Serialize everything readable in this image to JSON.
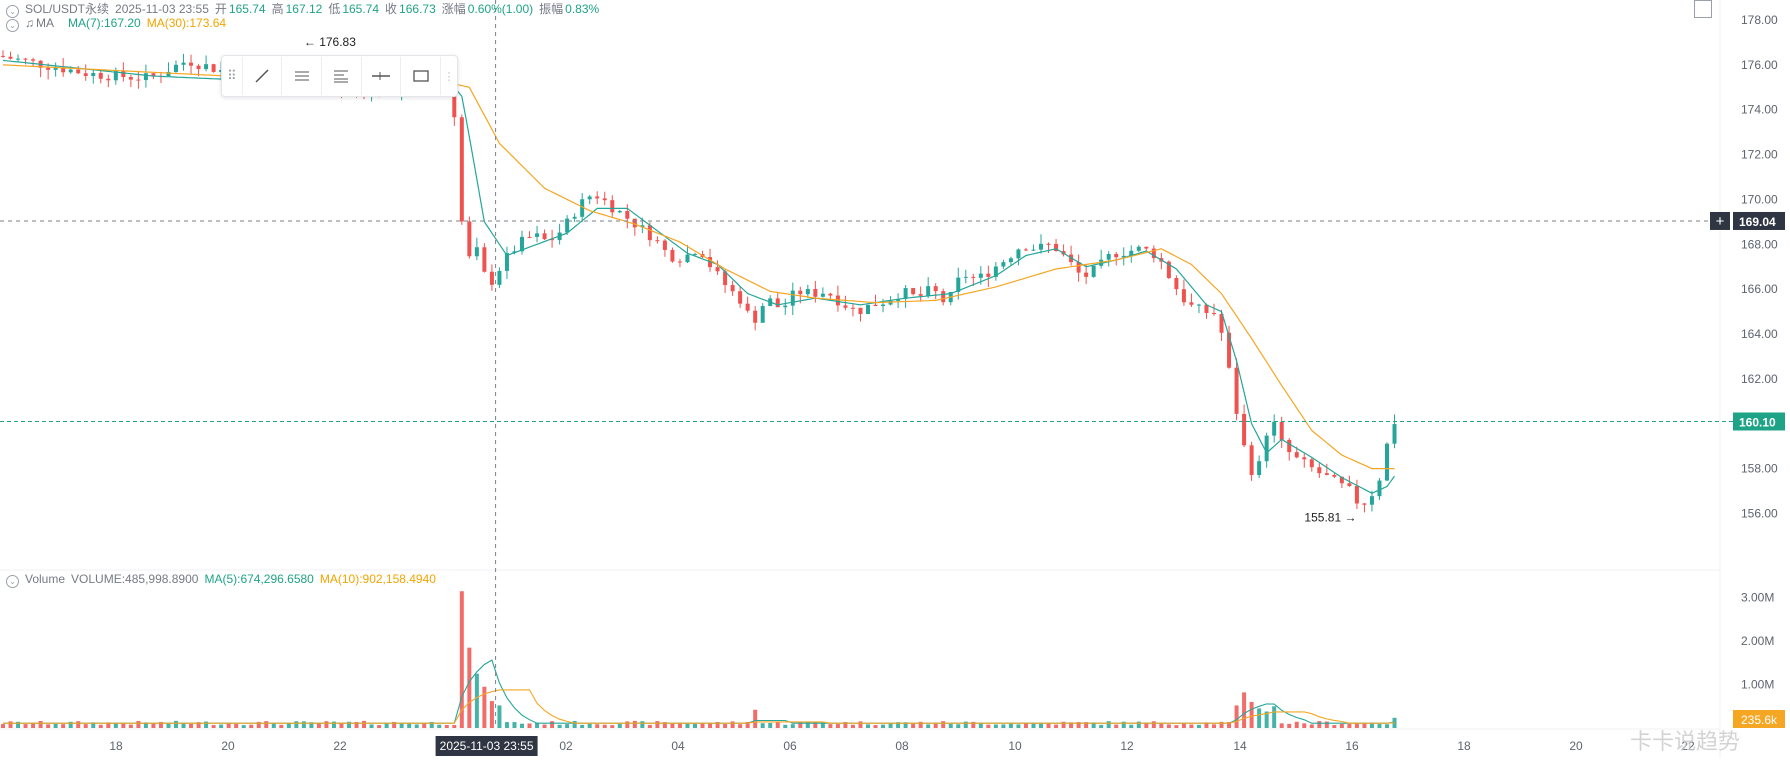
{
  "header": {
    "symbol": "SOL/USDT永续",
    "datetime": "2025-11-03 23:55",
    "open_label": "开",
    "open": "165.74",
    "high_label": "高",
    "high": "167.12",
    "low_label": "低",
    "low": "165.74",
    "close_label": "收",
    "close": "166.73",
    "change_label": "涨幅",
    "change": "0.60%(1.00)",
    "amplitude_label": "振幅",
    "amplitude": "0.83%"
  },
  "ma_legend": {
    "name": "MA",
    "ma7": "MA(7):167.20",
    "ma30": "MA(30):173.64"
  },
  "volume_legend": {
    "name": "Volume",
    "volume": "VOLUME:485,998.8900",
    "ma5": "MA(5):674,296.6580",
    "ma10": "MA(10):902,158.4940"
  },
  "annotations": {
    "high_marker": "← 176.83",
    "low_marker": "155.81 →"
  },
  "crosshair": {
    "price_label": "169.04",
    "time_label": "2025-11-03 23:55",
    "plus_icon": "plus-icon"
  },
  "last_price": "160.10",
  "last_volume": "235.6k",
  "watermark": "卡卡说趋势",
  "colors": {
    "up": "#26a69a",
    "down": "#ef5350",
    "ma7": "#26a69a",
    "ma30": "#f5a623",
    "last_price_bg": "#1fa386",
    "crosshair_bg": "#2f3542",
    "volume_bg": "#f5a623"
  },
  "toolbar": {
    "icons": [
      "drag-handle-icon",
      "trend-line-icon",
      "parallel-lines-icon",
      "multi-lines-icon",
      "horizontal-ray-icon",
      "rectangle-icon",
      "toolbar-more-icon"
    ]
  },
  "chart_data": {
    "type": "candlestick",
    "title": "SOL/USDT永续",
    "price_axis": {
      "ticks": [
        "178.00",
        "176.00",
        "174.00",
        "172.00",
        "170.00",
        "168.00",
        "166.00",
        "164.00",
        "162.00",
        "160.00",
        "158.00",
        "156.00"
      ],
      "range": [
        155.2,
        178.2
      ]
    },
    "volume_axis": {
      "ticks": [
        "3.00M",
        "2.00M",
        "1.00M"
      ],
      "range": [
        0,
        3300000
      ]
    },
    "x_axis": {
      "labels": [
        "18",
        "20",
        "22",
        "02",
        "04",
        "06",
        "08",
        "10",
        "12",
        "14",
        "16",
        "18",
        "20",
        "22"
      ]
    },
    "close_path": [
      [
        0,
        176.4
      ],
      [
        12,
        175.6
      ],
      [
        20,
        175.4
      ],
      [
        25,
        176.2
      ],
      [
        32,
        175.5
      ],
      [
        40,
        175.1
      ],
      [
        45,
        175.0
      ],
      [
        52,
        174.8
      ],
      [
        58,
        175.3
      ],
      [
        60,
        174.9
      ],
      [
        61,
        172.8
      ],
      [
        61.5,
        169.0
      ],
      [
        62,
        166.5
      ],
      [
        63,
        168.2
      ],
      [
        65,
        166.1
      ],
      [
        67,
        167.2
      ],
      [
        69,
        168.0
      ],
      [
        71,
        168.4
      ],
      [
        73,
        168.1
      ],
      [
        75,
        168.7
      ],
      [
        77,
        169.7
      ],
      [
        79,
        170.3
      ],
      [
        81,
        169.8
      ],
      [
        83,
        169.3
      ],
      [
        85,
        168.8
      ],
      [
        87,
        168.3
      ],
      [
        89,
        167.5
      ],
      [
        91,
        167.4
      ],
      [
        93,
        167.9
      ],
      [
        95,
        166.8
      ],
      [
        97,
        166.0
      ],
      [
        99,
        165.4
      ],
      [
        100,
        164.4
      ],
      [
        102,
        165.6
      ],
      [
        104,
        165.1
      ],
      [
        106,
        165.9
      ],
      [
        108,
        165.8
      ],
      [
        110,
        165.9
      ],
      [
        112,
        165.4
      ],
      [
        114,
        165.0
      ],
      [
        116,
        165.3
      ],
      [
        118,
        165.5
      ],
      [
        120,
        165.9
      ],
      [
        122,
        165.6
      ],
      [
        124,
        166.0
      ],
      [
        126,
        165.3
      ],
      [
        128,
        166.7
      ],
      [
        130,
        166.4
      ],
      [
        132,
        166.9
      ],
      [
        134,
        167.4
      ],
      [
        136,
        168.0
      ],
      [
        138,
        167.8
      ],
      [
        140,
        168.0
      ],
      [
        142,
        167.3
      ],
      [
        144,
        166.5
      ],
      [
        146,
        166.9
      ],
      [
        148,
        167.6
      ],
      [
        150,
        167.7
      ],
      [
        152,
        167.8
      ],
      [
        154,
        167.5
      ],
      [
        156,
        166.3
      ],
      [
        158,
        165.3
      ],
      [
        160,
        165.0
      ],
      [
        162,
        164.9
      ],
      [
        163,
        163.2
      ],
      [
        164,
        161.5
      ],
      [
        165,
        159.6
      ],
      [
        166,
        158.3
      ],
      [
        167,
        157.6
      ],
      [
        168,
        158.7
      ],
      [
        169,
        160.6
      ],
      [
        170,
        159.3
      ],
      [
        172,
        158.5
      ],
      [
        174,
        158.1
      ],
      [
        176,
        157.7
      ],
      [
        178,
        157.3
      ],
      [
        180,
        156.9
      ],
      [
        181,
        156.2
      ],
      [
        182,
        156.8
      ],
      [
        183,
        157.0
      ],
      [
        184,
        158.2
      ],
      [
        185,
        159.9
      ],
      [
        185.5,
        160.1
      ]
    ],
    "ma7_path": [
      [
        0,
        176.2
      ],
      [
        20,
        175.5
      ],
      [
        40,
        175.2
      ],
      [
        58,
        175.2
      ],
      [
        60,
        175.0
      ],
      [
        61,
        174.6
      ],
      [
        62,
        172.8
      ],
      [
        64,
        169.0
      ],
      [
        67,
        167.5
      ],
      [
        71,
        168.0
      ],
      [
        75,
        168.5
      ],
      [
        79,
        169.6
      ],
      [
        83,
        169.6
      ],
      [
        87,
        168.6
      ],
      [
        91,
        167.6
      ],
      [
        95,
        167.1
      ],
      [
        99,
        165.8
      ],
      [
        103,
        165.3
      ],
      [
        108,
        165.6
      ],
      [
        114,
        165.3
      ],
      [
        120,
        165.6
      ],
      [
        126,
        165.8
      ],
      [
        132,
        166.6
      ],
      [
        136,
        167.5
      ],
      [
        140,
        167.8
      ],
      [
        144,
        167.0
      ],
      [
        148,
        167.3
      ],
      [
        152,
        167.7
      ],
      [
        156,
        166.9
      ],
      [
        160,
        165.3
      ],
      [
        162,
        165.0
      ],
      [
        164,
        162.8
      ],
      [
        166,
        160.0
      ],
      [
        168,
        158.7
      ],
      [
        170,
        159.3
      ],
      [
        174,
        158.5
      ],
      [
        178,
        157.6
      ],
      [
        182,
        156.9
      ],
      [
        184,
        157.2
      ],
      [
        185.5,
        157.9
      ]
    ],
    "ma30_path": [
      [
        0,
        176.0
      ],
      [
        30,
        175.5
      ],
      [
        58,
        175.3
      ],
      [
        62,
        175.0
      ],
      [
        66,
        172.5
      ],
      [
        72,
        170.5
      ],
      [
        78,
        169.5
      ],
      [
        84,
        168.9
      ],
      [
        90,
        168.1
      ],
      [
        96,
        166.9
      ],
      [
        102,
        165.9
      ],
      [
        108,
        165.6
      ],
      [
        116,
        165.4
      ],
      [
        124,
        165.5
      ],
      [
        132,
        166.1
      ],
      [
        140,
        166.9
      ],
      [
        148,
        167.3
      ],
      [
        154,
        167.8
      ],
      [
        158,
        167.1
      ],
      [
        162,
        165.8
      ],
      [
        166,
        163.8
      ],
      [
        170,
        161.7
      ],
      [
        174,
        159.7
      ],
      [
        178,
        158.6
      ],
      [
        182,
        158.0
      ],
      [
        185.5,
        158.0
      ]
    ],
    "extremes": {
      "high": 176.83,
      "low": 155.81
    },
    "volume_spikes": [
      [
        61,
        3150000
      ],
      [
        62,
        1850000
      ],
      [
        63,
        1250000
      ],
      [
        64,
        950000
      ],
      [
        65,
        620000
      ],
      [
        66,
        520000
      ],
      [
        100,
        420000
      ],
      [
        164,
        520000
      ],
      [
        165,
        820000
      ],
      [
        166,
        600000
      ],
      [
        167,
        450000
      ],
      [
        168,
        380000
      ],
      [
        169,
        500000
      ],
      [
        185,
        380000
      ],
      [
        185.5,
        235600
      ]
    ],
    "volume_base": 110000
  }
}
